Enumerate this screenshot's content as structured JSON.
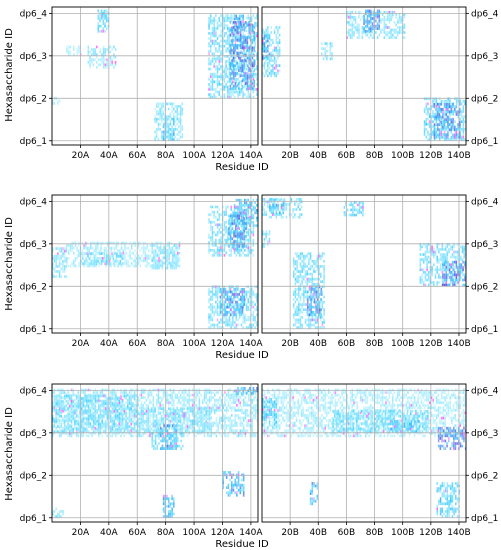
{
  "chart_data": {
    "type": "heatmap",
    "xlabel": "Residue ID",
    "ylabel": "Hexasaccharide ID",
    "y_categories": [
      "dp6_1",
      "dp6_2",
      "dp6_3",
      "dp6_4"
    ],
    "x_ticks_left": [
      "20A",
      "40A",
      "60A",
      "80A",
      "100A",
      "120A",
      "140A"
    ],
    "x_ticks_right": [
      "20B",
      "40B",
      "60B",
      "80B",
      "100B",
      "120B",
      "140B"
    ],
    "x_range": [
      0,
      145
    ],
    "grid": true,
    "colors": {
      "low": "#e6ffff",
      "mid": "#33ccff",
      "high": "#7b3fd6",
      "accent": "#ff66ff"
    },
    "panels": [
      {
        "chain": "A",
        "regions": [
          {
            "x0": 32,
            "x1": 40,
            "y0": 3.55,
            "y1": 4.05,
            "level": 0.4
          },
          {
            "x0": 35,
            "x1": 38,
            "y0": 3.9,
            "y1": 4.05,
            "level": 0.5
          },
          {
            "x0": 25,
            "x1": 45,
            "y0": 2.7,
            "y1": 3.2,
            "level": 0.25
          },
          {
            "x0": 10,
            "x1": 20,
            "y0": 3.0,
            "y1": 3.2,
            "level": 0.15
          },
          {
            "x0": 0,
            "x1": 5,
            "y0": 1.85,
            "y1": 2.0,
            "level": 0.25
          },
          {
            "x0": 72,
            "x1": 92,
            "y0": 1.0,
            "y1": 1.9,
            "level": 0.3
          },
          {
            "x0": 78,
            "x1": 86,
            "y0": 1.0,
            "y1": 1.5,
            "level": 0.5
          },
          {
            "x0": 110,
            "x1": 145,
            "y0": 2.0,
            "y1": 3.95,
            "level": 0.35
          },
          {
            "x0": 125,
            "x1": 142,
            "y0": 2.2,
            "y1": 3.8,
            "level": 0.75
          },
          {
            "x0": 128,
            "x1": 134,
            "y0": 3.6,
            "y1": 3.95,
            "level": 0.7
          }
        ]
      },
      {
        "chain": "B",
        "regions": [
          {
            "x0": 0,
            "x1": 12,
            "y0": 2.5,
            "y1": 3.7,
            "level": 0.35
          },
          {
            "x0": 0,
            "x1": 5,
            "y0": 2.9,
            "y1": 3.5,
            "level": 0.7
          },
          {
            "x0": 60,
            "x1": 102,
            "y0": 3.4,
            "y1": 4.05,
            "level": 0.3
          },
          {
            "x0": 72,
            "x1": 84,
            "y0": 3.55,
            "y1": 4.05,
            "level": 0.7
          },
          {
            "x0": 42,
            "x1": 50,
            "y0": 2.9,
            "y1": 3.3,
            "level": 0.3
          },
          {
            "x0": 115,
            "x1": 145,
            "y0": 1.0,
            "y1": 2.0,
            "level": 0.4
          },
          {
            "x0": 122,
            "x1": 140,
            "y0": 1.05,
            "y1": 1.85,
            "level": 0.7
          }
        ]
      },
      {
        "chain": "A",
        "regions": [
          {
            "x0": 128,
            "x1": 145,
            "y0": 3.4,
            "y1": 4.05,
            "level": 0.6
          },
          {
            "x0": 110,
            "x1": 142,
            "y0": 2.7,
            "y1": 3.9,
            "level": 0.35
          },
          {
            "x0": 124,
            "x1": 136,
            "y0": 2.85,
            "y1": 3.7,
            "level": 0.7
          },
          {
            "x0": 0,
            "x1": 10,
            "y0": 2.2,
            "y1": 2.9,
            "level": 0.3
          },
          {
            "x0": 10,
            "x1": 90,
            "y0": 2.45,
            "y1": 3.0,
            "level": 0.2
          },
          {
            "x0": 20,
            "x1": 50,
            "y0": 2.5,
            "y1": 2.75,
            "level": 0.35
          },
          {
            "x0": 70,
            "x1": 88,
            "y0": 2.4,
            "y1": 3.0,
            "level": 0.3
          },
          {
            "x0": 110,
            "x1": 145,
            "y0": 1.0,
            "y1": 2.0,
            "level": 0.35
          },
          {
            "x0": 118,
            "x1": 135,
            "y0": 1.3,
            "y1": 1.95,
            "level": 0.65
          }
        ]
      },
      {
        "chain": "B",
        "regions": [
          {
            "x0": 0,
            "x1": 28,
            "y0": 3.6,
            "y1": 4.05,
            "level": 0.35
          },
          {
            "x0": 5,
            "x1": 15,
            "y0": 3.7,
            "y1": 4.05,
            "level": 0.55
          },
          {
            "x0": 58,
            "x1": 72,
            "y0": 3.65,
            "y1": 4.0,
            "level": 0.45
          },
          {
            "x0": 0,
            "x1": 5,
            "y0": 2.9,
            "y1": 3.3,
            "level": 0.3
          },
          {
            "x0": 22,
            "x1": 44,
            "y0": 1.0,
            "y1": 2.8,
            "level": 0.35
          },
          {
            "x0": 32,
            "x1": 42,
            "y0": 1.3,
            "y1": 2.0,
            "level": 0.7
          },
          {
            "x0": 112,
            "x1": 145,
            "y0": 2.0,
            "y1": 3.0,
            "level": 0.35
          },
          {
            "x0": 128,
            "x1": 145,
            "y0": 2.0,
            "y1": 2.6,
            "level": 0.8
          }
        ]
      },
      {
        "chain": "A",
        "regions": [
          {
            "x0": 0,
            "x1": 145,
            "y0": 2.9,
            "y1": 4.0,
            "level": 0.25
          },
          {
            "x0": 0,
            "x1": 60,
            "y0": 3.0,
            "y1": 3.9,
            "level": 0.35
          },
          {
            "x0": 60,
            "x1": 112,
            "y0": 3.0,
            "y1": 3.6,
            "level": 0.3
          },
          {
            "x0": 76,
            "x1": 88,
            "y0": 2.6,
            "y1": 3.2,
            "level": 0.75
          },
          {
            "x0": 70,
            "x1": 92,
            "y0": 2.6,
            "y1": 3.0,
            "level": 0.4
          },
          {
            "x0": 128,
            "x1": 145,
            "y0": 3.9,
            "y1": 4.05,
            "level": 0.6
          },
          {
            "x0": 120,
            "x1": 135,
            "y0": 1.5,
            "y1": 2.1,
            "level": 0.65
          },
          {
            "x0": 78,
            "x1": 86,
            "y0": 1.0,
            "y1": 1.5,
            "level": 0.55
          },
          {
            "x0": 0,
            "x1": 8,
            "y0": 1.0,
            "y1": 1.2,
            "level": 0.3
          }
        ]
      },
      {
        "chain": "B",
        "regions": [
          {
            "x0": 0,
            "x1": 145,
            "y0": 2.9,
            "y1": 4.0,
            "level": 0.2
          },
          {
            "x0": 0,
            "x1": 10,
            "y0": 3.1,
            "y1": 3.8,
            "level": 0.45
          },
          {
            "x0": 50,
            "x1": 118,
            "y0": 3.0,
            "y1": 3.5,
            "level": 0.35
          },
          {
            "x0": 90,
            "x1": 112,
            "y0": 3.0,
            "y1": 3.25,
            "level": 0.5
          },
          {
            "x0": 125,
            "x1": 145,
            "y0": 2.6,
            "y1": 3.1,
            "level": 0.75
          },
          {
            "x0": 124,
            "x1": 140,
            "y0": 1.0,
            "y1": 1.8,
            "level": 0.45
          },
          {
            "x0": 34,
            "x1": 40,
            "y0": 1.3,
            "y1": 1.8,
            "level": 0.65
          }
        ]
      }
    ]
  }
}
